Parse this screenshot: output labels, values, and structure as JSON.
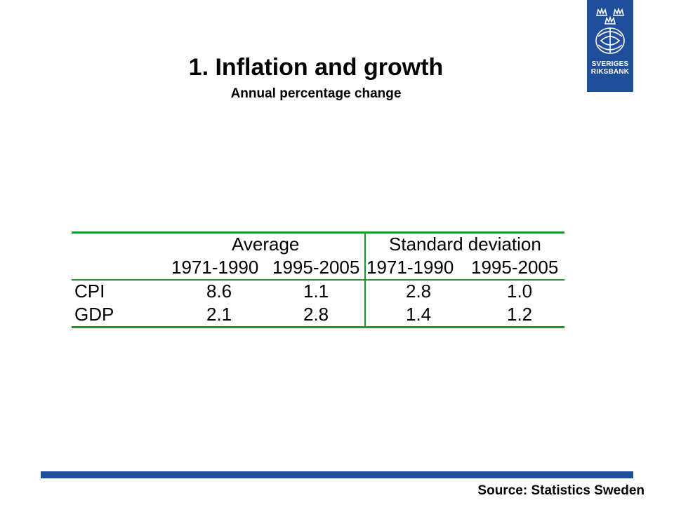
{
  "header": {
    "title": "1. Inflation and growth",
    "subtitle": "Annual percentage change"
  },
  "logo": {
    "line1": "SVERIGES",
    "line2": "RIKSBANK",
    "icon": "riksbank-crown-emblem-icon",
    "background": "#1f4e9a"
  },
  "chart_data": {
    "type": "table",
    "group_headers": [
      "Average",
      "Standard deviation"
    ],
    "period_headers": [
      "1971-1990",
      "1995-2005",
      "1971-1990",
      "1995-2005"
    ],
    "rows": [
      {
        "label": "CPI",
        "values": [
          "8.6",
          "1.1",
          "2.8",
          "1.0"
        ]
      },
      {
        "label": "GDP",
        "values": [
          "2.1",
          "2.8",
          "1.4",
          "1.2"
        ]
      }
    ],
    "rule_color": "#1a9a2a"
  },
  "footer": {
    "source": "Source: Statistics Sweden",
    "bar_color": "#1f4e9a"
  }
}
